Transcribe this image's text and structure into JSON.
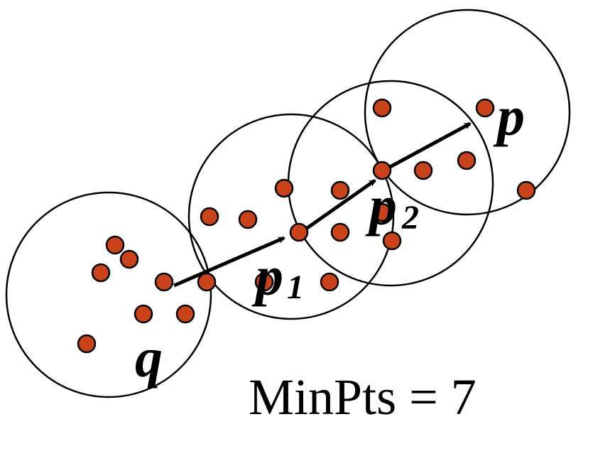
{
  "labels": {
    "q": "q",
    "p1_main": "p",
    "p1_sub": "1",
    "p2_main": "p",
    "p2_sub": "2",
    "p": "p",
    "minpts": "MinPts = 7"
  },
  "colors": {
    "point_fill": "#C8431C",
    "point_stroke": "#000000",
    "circle_stroke": "#000000",
    "arrow": "#000000",
    "background": "#FFFFFF"
  }
}
